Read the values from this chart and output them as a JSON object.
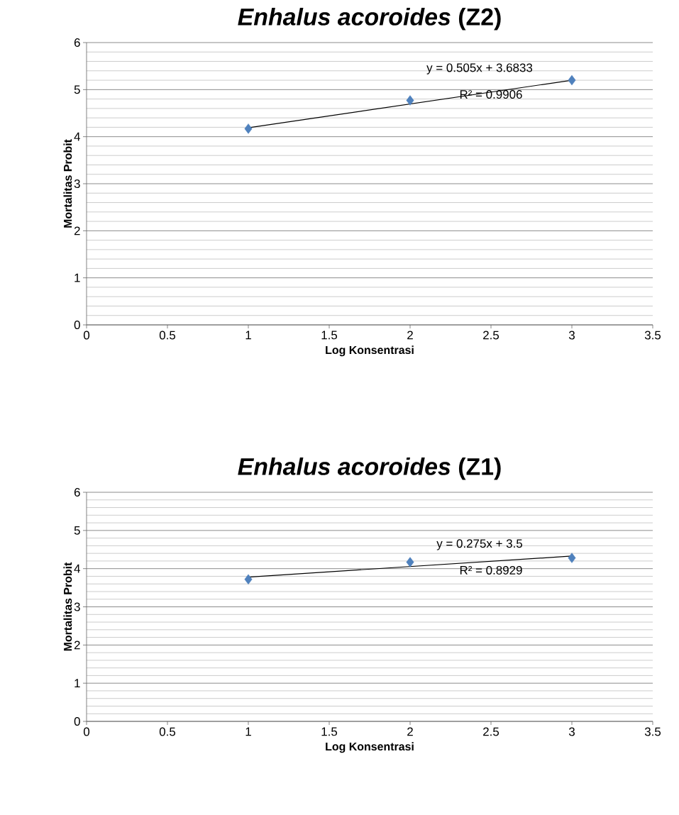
{
  "chart_data": [
    {
      "type": "scatter",
      "title": "*Enhalus acoroides* (Z2)",
      "xlabel": "Log Konsentrasi",
      "ylabel": "Mortalitas Probit",
      "xlim": [
        0,
        3.5
      ],
      "xticks": [
        0,
        0.5,
        1,
        1.5,
        2,
        2.5,
        3,
        3.5
      ],
      "ylim": [
        0,
        6
      ],
      "yticks": [
        0,
        1,
        2,
        3,
        4,
        5,
        6
      ],
      "grid": "y",
      "marker": "diamond",
      "series": [
        {
          "color": "#4f81bd",
          "x": [
            1,
            2,
            3
          ],
          "values": [
            4.17,
            4.77,
            5.2
          ]
        },
        {
          "type": "line",
          "color": "#000000",
          "marker": "none",
          "x": [
            1,
            3
          ],
          "values": [
            4.19,
            5.2
          ]
        }
      ],
      "annotations": [
        "y = 0.505x + 3.6833",
        "R² = 0.9906"
      ]
    },
    {
      "type": "scatter",
      "title": "*Enhalus acoroides* (Z1)",
      "xlabel": "Log Konsentrasi",
      "ylabel": "Mortalitas Probit",
      "xlim": [
        0,
        3.5
      ],
      "xticks": [
        0,
        0.5,
        1,
        1.5,
        2,
        2.5,
        3,
        3.5
      ],
      "ylim": [
        0,
        6
      ],
      "yticks": [
        0,
        1,
        2,
        3,
        4,
        5,
        6
      ],
      "grid": "y",
      "marker": "diamond",
      "series": [
        {
          "color": "#4f81bd",
          "x": [
            1,
            2,
            3
          ],
          "values": [
            3.72,
            4.17,
            4.28
          ]
        },
        {
          "type": "line",
          "color": "#000000",
          "marker": "none",
          "x": [
            1,
            3
          ],
          "values": [
            3.78,
            4.33
          ]
        }
      ],
      "annotations": [
        "y = 0.275x + 3.5",
        "R² = 0.8929"
      ]
    }
  ]
}
